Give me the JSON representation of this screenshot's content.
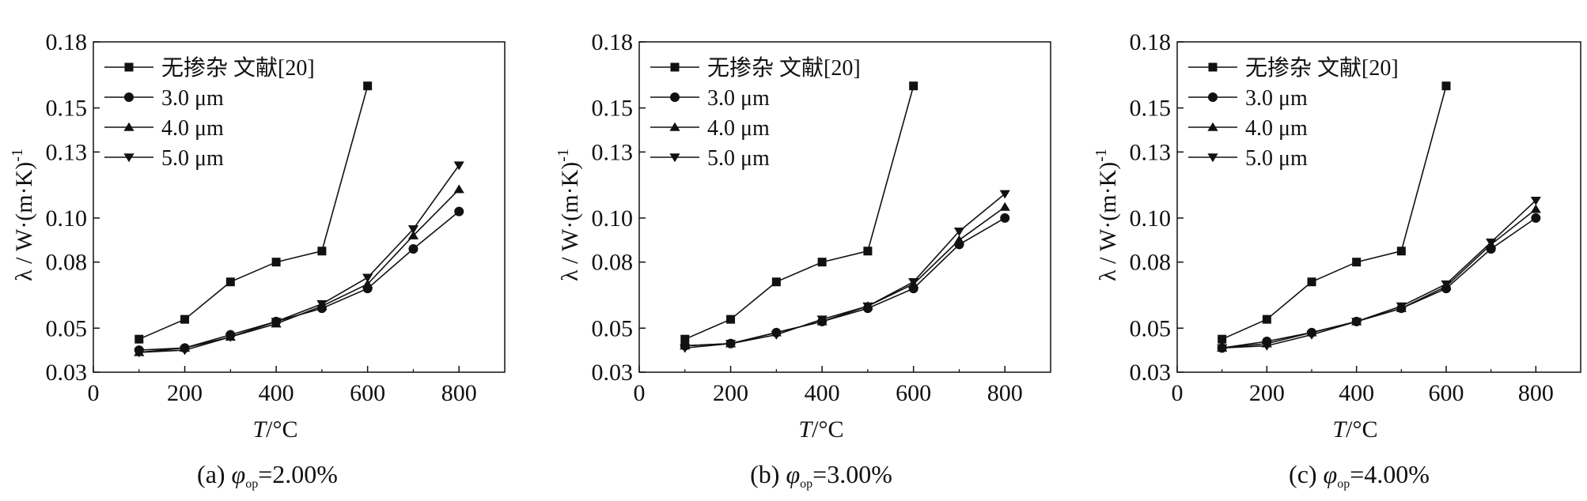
{
  "legend_labels": [
    "无掺杂 文献[20]",
    "3.0 μm",
    "4.0 μm",
    "5.0 μm"
  ],
  "chart_data": [
    {
      "type": "line",
      "panel_label": "(a)",
      "caption": {
        "prefix": "(a)",
        "symbol": "φ",
        "subscript": "op",
        "value": "=2.00%"
      },
      "xlabel": {
        "var": "T",
        "unit": "/°C"
      },
      "ylabel": "λ / W·(m·K)",
      "ylabel_exp": "-1",
      "xlim": [
        0,
        900
      ],
      "ylim": [
        0.03,
        0.18
      ],
      "x_ticks": [
        0,
        200,
        400,
        600,
        800
      ],
      "y_ticks": [
        0.03,
        0.05,
        0.08,
        0.1,
        0.13,
        0.15,
        0.18
      ],
      "y_tick_labels": [
        "0.03",
        "0.05",
        "0.08",
        "0.10",
        "0.13",
        "0.15",
        "0.18"
      ],
      "legend": "top-left",
      "grid": false,
      "series": [
        {
          "name": "无掺杂 文献[20]",
          "marker": "square",
          "x": [
            100,
            200,
            300,
            400,
            500,
            600
          ],
          "y": [
            0.045,
            0.054,
            0.071,
            0.08,
            0.085,
            0.16
          ]
        },
        {
          "name": "3.0 μm",
          "marker": "circle",
          "x": [
            100,
            200,
            300,
            400,
            500,
            600,
            700,
            800
          ],
          "y": [
            0.04,
            0.041,
            0.047,
            0.053,
            0.059,
            0.068,
            0.086,
            0.103
          ]
        },
        {
          "name": "4.0 μm",
          "marker": "triangle-up",
          "x": [
            100,
            200,
            300,
            400,
            500,
            600,
            700,
            800
          ],
          "y": [
            0.039,
            0.041,
            0.046,
            0.052,
            0.06,
            0.07,
            0.092,
            0.113
          ]
        },
        {
          "name": "5.0 μm",
          "marker": "triangle-down",
          "x": [
            100,
            200,
            300,
            400,
            500,
            600,
            700,
            800
          ],
          "y": [
            0.039,
            0.04,
            0.046,
            0.053,
            0.061,
            0.073,
            0.095,
            0.124
          ]
        }
      ]
    },
    {
      "type": "line",
      "panel_label": "(b)",
      "caption": {
        "prefix": "(b)",
        "symbol": "φ",
        "subscript": "op",
        "value": "=3.00%"
      },
      "xlabel": {
        "var": "T",
        "unit": "/°C"
      },
      "ylabel": "λ / W·(m·K)",
      "ylabel_exp": "-1",
      "xlim": [
        0,
        900
      ],
      "ylim": [
        0.03,
        0.18
      ],
      "x_ticks": [
        0,
        200,
        400,
        600,
        800
      ],
      "y_ticks": [
        0.03,
        0.05,
        0.08,
        0.1,
        0.13,
        0.15,
        0.18
      ],
      "y_tick_labels": [
        "0.03",
        "0.05",
        "0.08",
        "0.10",
        "0.13",
        "0.15",
        "0.18"
      ],
      "legend": "top-left",
      "grid": false,
      "series": [
        {
          "name": "无掺杂 文献[20]",
          "marker": "square",
          "x": [
            100,
            200,
            300,
            400,
            500,
            600
          ],
          "y": [
            0.045,
            0.054,
            0.071,
            0.08,
            0.085,
            0.16
          ]
        },
        {
          "name": "3.0 μm",
          "marker": "circle",
          "x": [
            100,
            200,
            300,
            400,
            500,
            600,
            700,
            800
          ],
          "y": [
            0.042,
            0.043,
            0.048,
            0.053,
            0.059,
            0.068,
            0.088,
            0.1
          ]
        },
        {
          "name": "4.0 μm",
          "marker": "triangle-up",
          "x": [
            100,
            200,
            300,
            400,
            500,
            600,
            700,
            800
          ],
          "y": [
            0.042,
            0.043,
            0.048,
            0.053,
            0.06,
            0.07,
            0.09,
            0.105
          ]
        },
        {
          "name": "5.0 μm",
          "marker": "triangle-down",
          "x": [
            100,
            200,
            300,
            400,
            500,
            600,
            700,
            800
          ],
          "y": [
            0.041,
            0.043,
            0.047,
            0.054,
            0.06,
            0.071,
            0.094,
            0.111
          ]
        }
      ]
    },
    {
      "type": "line",
      "panel_label": "(c)",
      "caption": {
        "prefix": "(c)",
        "symbol": "φ",
        "subscript": "op",
        "value": "=4.00%"
      },
      "xlabel": {
        "var": "T",
        "unit": "/°C"
      },
      "ylabel": "λ / W·(m·K)",
      "ylabel_exp": "-1",
      "xlim": [
        0,
        900
      ],
      "ylim": [
        0.03,
        0.18
      ],
      "x_ticks": [
        0,
        200,
        400,
        600,
        800
      ],
      "y_ticks": [
        0.03,
        0.05,
        0.08,
        0.1,
        0.13,
        0.15,
        0.18
      ],
      "y_tick_labels": [
        "0.03",
        "0.05",
        "0.08",
        "0.10",
        "0.13",
        "0.15",
        "0.18"
      ],
      "legend": "top-left",
      "grid": false,
      "series": [
        {
          "name": "无掺杂 文献[20]",
          "marker": "square",
          "x": [
            100,
            200,
            300,
            400,
            500,
            600
          ],
          "y": [
            0.045,
            0.054,
            0.071,
            0.08,
            0.085,
            0.16
          ]
        },
        {
          "name": "3.0 μm",
          "marker": "circle",
          "x": [
            100,
            200,
            300,
            400,
            500,
            600,
            700,
            800
          ],
          "y": [
            0.041,
            0.044,
            0.048,
            0.053,
            0.059,
            0.068,
            0.086,
            0.1
          ]
        },
        {
          "name": "4.0 μm",
          "marker": "triangle-up",
          "x": [
            100,
            200,
            300,
            400,
            500,
            600,
            700,
            800
          ],
          "y": [
            0.041,
            0.043,
            0.048,
            0.053,
            0.059,
            0.069,
            0.088,
            0.104
          ]
        },
        {
          "name": "5.0 μm",
          "marker": "triangle-down",
          "x": [
            100,
            200,
            300,
            400,
            500,
            600,
            700,
            800
          ],
          "y": [
            0.041,
            0.042,
            0.047,
            0.053,
            0.06,
            0.07,
            0.089,
            0.108
          ]
        }
      ]
    }
  ]
}
